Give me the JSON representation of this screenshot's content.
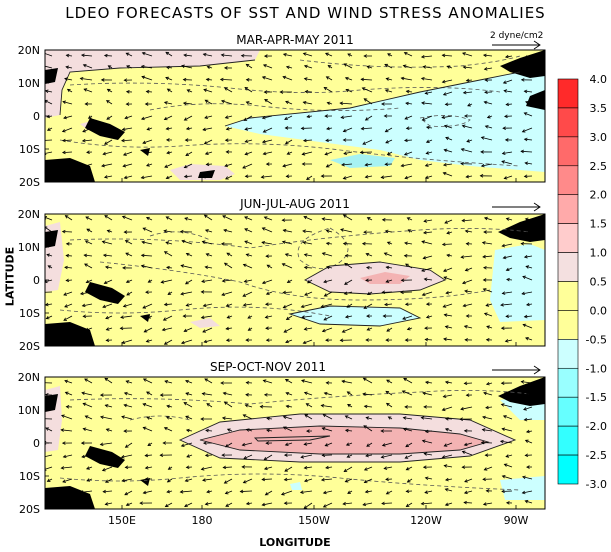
{
  "title": "LDEO FORECASTS OF SST AND WIND STRESS ANOMALIES",
  "ylabel": "LATITUDE",
  "xlabel": "LONGITUDE",
  "scale_label": "2 dyne/cm2",
  "latitude_ticks": [
    "20N",
    "10N",
    "0",
    "10S",
    "20S"
  ],
  "longitude_ticks": [
    "150E",
    "180",
    "150W",
    "120W",
    "90W"
  ],
  "panels": [
    {
      "title": "MAR-APR-MAY 2011"
    },
    {
      "title": "JUN-JUL-AUG 2011"
    },
    {
      "title": "SEP-OCT-NOV 2011"
    }
  ],
  "colorbar": {
    "labels": [
      "4.0",
      "3.5",
      "3.0",
      "2.5",
      "2.0",
      "1.5",
      "1.0",
      "0.5",
      "0.0",
      "-0.5",
      "-1.0",
      "-1.5",
      "-2.0",
      "-2.5",
      "-3.0"
    ],
    "colors": [
      "#ff2a2a",
      "#ff4a4a",
      "#ff6a6a",
      "#ff8a8a",
      "#ffaaaa",
      "#ffcccc",
      "#f4e0e0",
      "#ffff99",
      "#ffff99",
      "#ccffff",
      "#99ffff",
      "#66ffff",
      "#33ffff",
      "#00ffff"
    ]
  },
  "colors": {
    "land": "#000000",
    "neutral": "#ffff99",
    "warm_light": "#f4dede",
    "warm_mid": "#f3b3b3",
    "cool_light": "#ccffff"
  }
}
